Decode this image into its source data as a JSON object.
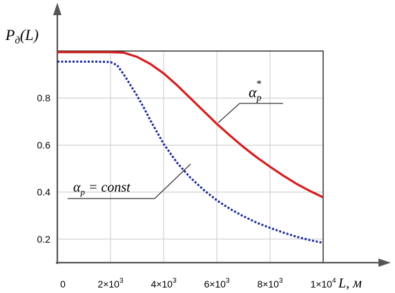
{
  "chart_data": {
    "type": "line",
    "xlim": [
      0,
      10000
    ],
    "ylim": [
      0.1,
      1.0
    ],
    "grid": true,
    "ylabel_main": "P",
    "ylabel_sub": "д",
    "ylabel_arg": "(L)",
    "xlabel": "L, м",
    "x_ticks": [
      {
        "value": 0,
        "label": "0"
      },
      {
        "value": 2000,
        "label": "2×10",
        "exp": "3"
      },
      {
        "value": 4000,
        "label": "4×10",
        "exp": "3"
      },
      {
        "value": 6000,
        "label": "6×10",
        "exp": "3"
      },
      {
        "value": 8000,
        "label": "8×10",
        "exp": "3"
      },
      {
        "value": 10000,
        "label": "1×10",
        "exp": "4"
      }
    ],
    "y_ticks": [
      {
        "value": 0.2,
        "label": "0.2"
      },
      {
        "value": 0.4,
        "label": "0.4"
      },
      {
        "value": 0.6,
        "label": "0.6"
      },
      {
        "value": 0.8,
        "label": "0.8"
      }
    ],
    "series": [
      {
        "name": "αp*",
        "label_main": "α",
        "label_sub": "p",
        "label_sup": "*",
        "color": "#d42020",
        "style": "solid",
        "x": [
          0,
          500,
          1000,
          1500,
          2000,
          2500,
          3000,
          3500,
          4000,
          4500,
          5000,
          5500,
          6000,
          6500,
          7000,
          7500,
          8000,
          8500,
          9000,
          9500,
          10000
        ],
        "y": [
          0.995,
          0.995,
          0.995,
          0.995,
          0.995,
          0.993,
          0.975,
          0.945,
          0.905,
          0.855,
          0.8,
          0.745,
          0.69,
          0.64,
          0.592,
          0.548,
          0.508,
          0.47,
          0.435,
          0.405,
          0.378
        ]
      },
      {
        "name": "αp = const",
        "label_main": "α",
        "label_sub": "p",
        "label_tail": " = const",
        "color": "#1a2a9a",
        "style": "dotted",
        "x": [
          0,
          500,
          1000,
          1500,
          2000,
          2250,
          2500,
          2750,
          3000,
          3250,
          3500,
          3750,
          4000,
          4500,
          5000,
          5500,
          6000,
          6500,
          7000,
          7500,
          8000,
          8500,
          9000,
          9500,
          10000
        ],
        "y": [
          0.955,
          0.955,
          0.955,
          0.955,
          0.953,
          0.94,
          0.9,
          0.855,
          0.81,
          0.76,
          0.705,
          0.655,
          0.605,
          0.525,
          0.462,
          0.41,
          0.365,
          0.328,
          0.297,
          0.27,
          0.248,
          0.228,
          0.21,
          0.196,
          0.184
        ]
      }
    ]
  }
}
